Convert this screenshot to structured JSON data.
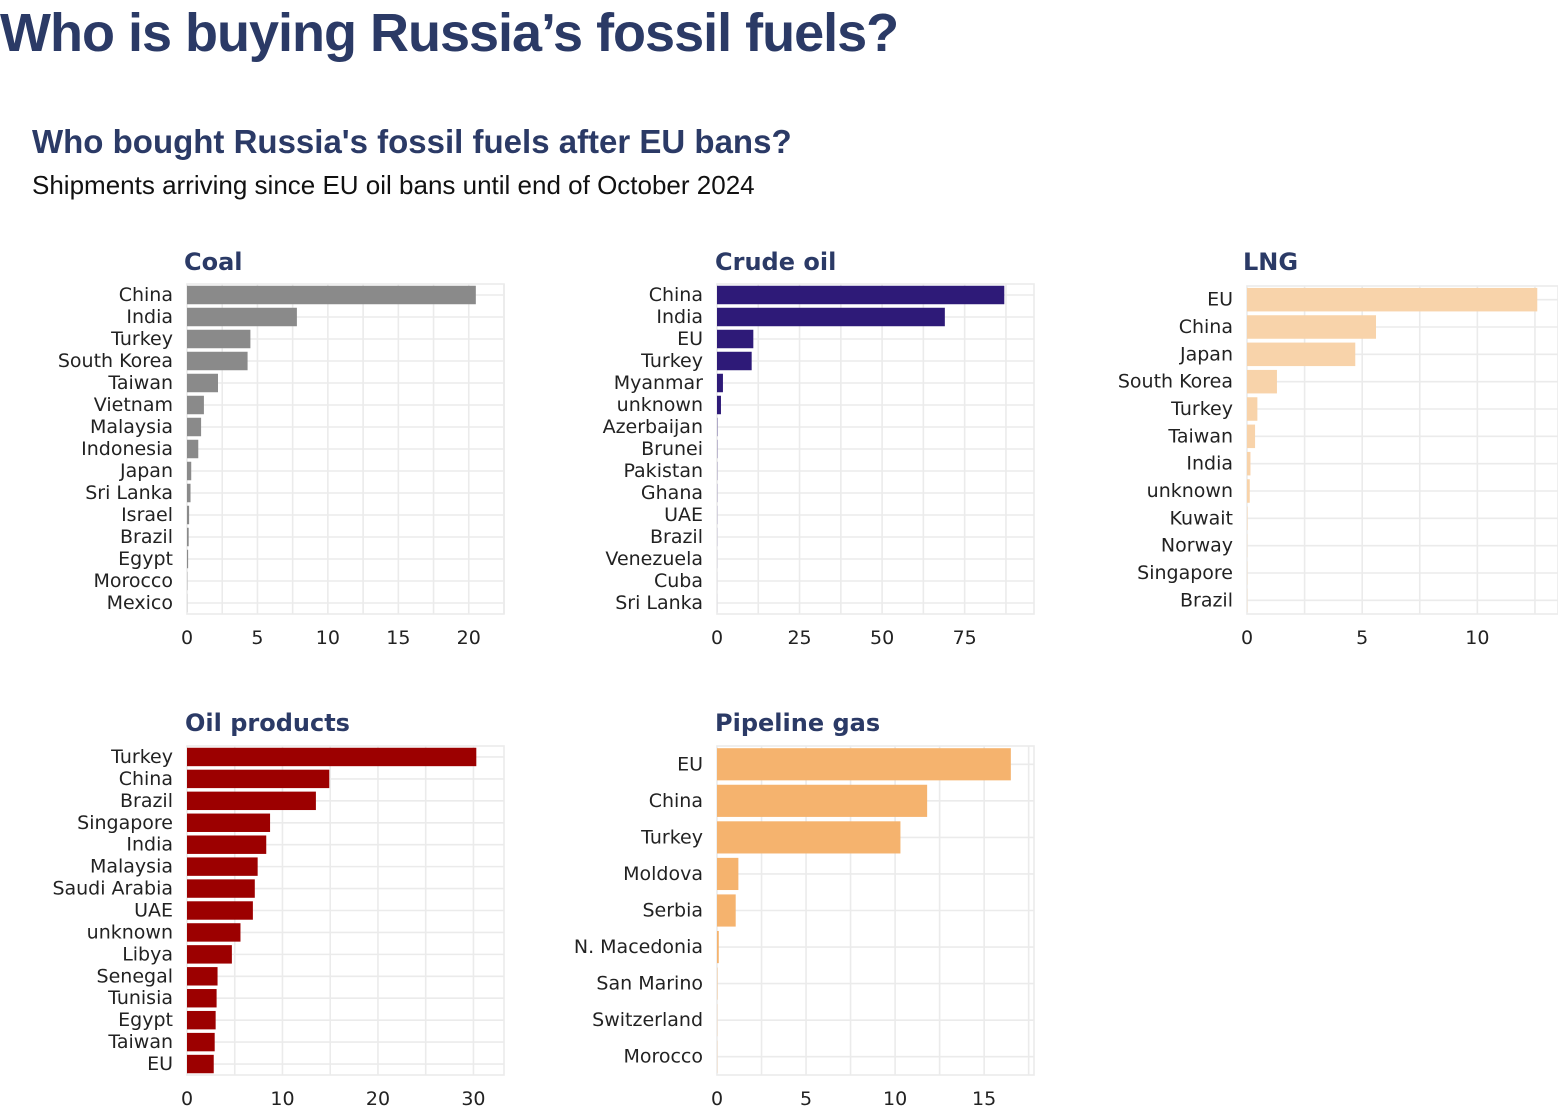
{
  "title": "Who is buying Russia’s fossil fuels?",
  "subtitle": "Who bought Russia's fossil fuels after EU bans?",
  "caption": "Shipments arriving since EU oil bans until end of October 2024",
  "chart_data": [
    {
      "type": "bar",
      "orientation": "horizontal",
      "title": "Coal",
      "color": "#8a8a8a",
      "categories": [
        "China",
        "India",
        "Turkey",
        "South Korea",
        "Taiwan",
        "Vietnam",
        "Malaysia",
        "Indonesia",
        "Japan",
        "Sri Lanka",
        "Israel",
        "Brazil",
        "Egypt",
        "Morocco",
        "Mexico"
      ],
      "values": [
        20.5,
        7.8,
        4.5,
        4.3,
        2.2,
        1.2,
        1.0,
        0.8,
        0.3,
        0.25,
        0.15,
        0.12,
        0.08,
        0.02,
        0.01
      ],
      "ticks": [
        0,
        5,
        10,
        15,
        20
      ],
      "xlim": [
        0,
        22.5
      ]
    },
    {
      "type": "bar",
      "orientation": "horizontal",
      "title": "Crude oil",
      "color": "#2e1a78",
      "categories": [
        "China",
        "India",
        "EU",
        "Turkey",
        "Myanmar",
        "unknown",
        "Azerbaijan",
        "Brunei",
        "Pakistan",
        "Ghana",
        "UAE",
        "Brazil",
        "Venezuela",
        "Cuba",
        "Sri Lanka"
      ],
      "values": [
        87,
        69,
        11,
        10.5,
        1.8,
        1.2,
        0.1,
        0.08,
        0.06,
        0.05,
        0.04,
        0.03,
        0.02,
        0.01,
        0.01
      ],
      "ticks": [
        0,
        25,
        50,
        75
      ],
      "xlim": [
        0,
        96
      ]
    },
    {
      "type": "bar",
      "orientation": "horizontal",
      "title": "LNG",
      "color": "#f8d3aa",
      "categories": [
        "EU",
        "China",
        "Japan",
        "South Korea",
        "Turkey",
        "Taiwan",
        "India",
        "unknown",
        "Kuwait",
        "Norway",
        "Singapore",
        "Brazil"
      ],
      "values": [
        12.6,
        5.6,
        4.7,
        1.3,
        0.45,
        0.35,
        0.15,
        0.12,
        0.02,
        0.01,
        0.01,
        0.01
      ],
      "ticks": [
        0,
        5,
        10
      ],
      "xlim": [
        0,
        13.5
      ]
    },
    {
      "type": "bar",
      "orientation": "horizontal",
      "title": "Oil products",
      "color": "#9c0000",
      "categories": [
        "Turkey",
        "China",
        "Brazil",
        "Singapore",
        "India",
        "Malaysia",
        "Saudi Arabia",
        "UAE",
        "unknown",
        "Libya",
        "Senegal",
        "Tunisia",
        "Egypt",
        "Taiwan",
        "EU"
      ],
      "values": [
        30.3,
        14.9,
        13.5,
        8.7,
        8.3,
        7.4,
        7.1,
        6.9,
        5.6,
        4.7,
        3.2,
        3.1,
        3.0,
        2.9,
        2.8
      ],
      "ticks": [
        0,
        10,
        20,
        30
      ],
      "xlim": [
        0,
        33.2
      ]
    },
    {
      "type": "bar",
      "orientation": "horizontal",
      "title": "Pipeline gas",
      "color": "#f5b36e",
      "categories": [
        "EU",
        "China",
        "Turkey",
        "Moldova",
        "Serbia",
        "N. Macedonia",
        "San Marino",
        "Switzerland",
        "Morocco"
      ],
      "values": [
        16.5,
        11.8,
        10.3,
        1.2,
        1.05,
        0.1,
        0.02,
        0.01,
        0.01
      ],
      "ticks": [
        0,
        5,
        10,
        15
      ],
      "xlim": [
        0,
        17.8
      ]
    }
  ]
}
